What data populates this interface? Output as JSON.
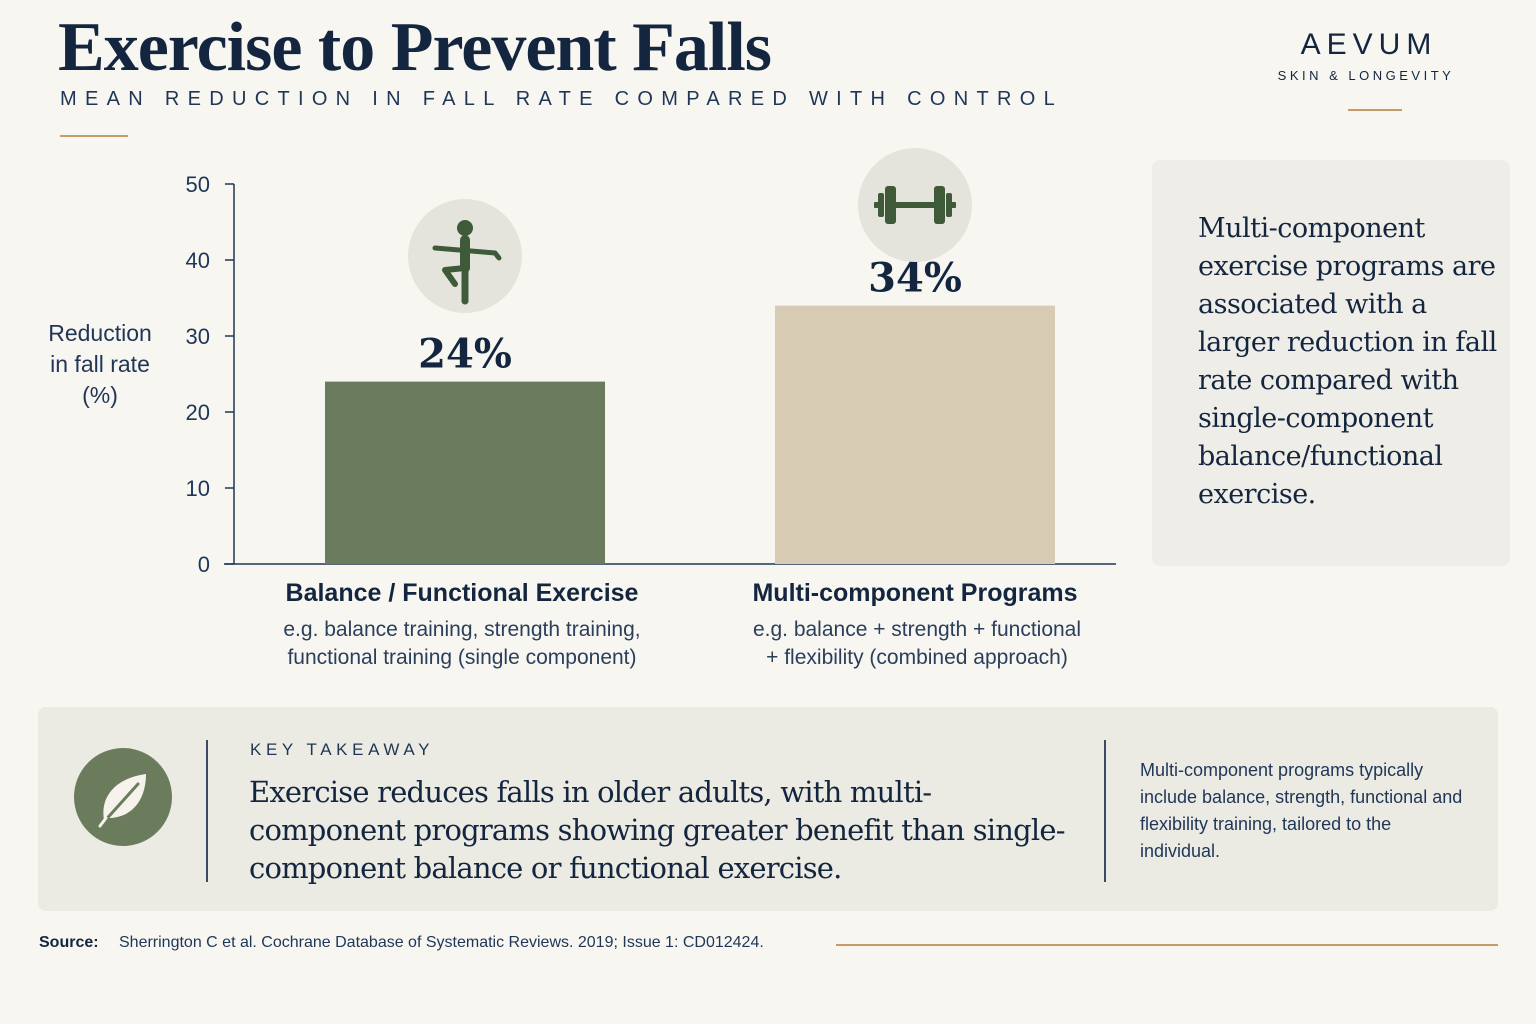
{
  "header": {
    "title": "Exercise to Prevent Falls",
    "subtitle": "MEAN REDUCTION IN FALL RATE COMPARED WITH CONTROL"
  },
  "brand": {
    "name": "AEVUM",
    "tagline": "SKIN & LONGEVITY"
  },
  "chart_data": {
    "type": "bar",
    "title": "Exercise to Prevent Falls",
    "subtitle": "MEAN REDUCTION IN FALL RATE COMPARED WITH CONTROL",
    "ylabel": "Reduction in fall rate (%)",
    "ylim": [
      0,
      50
    ],
    "yticks": [
      0,
      10,
      20,
      30,
      40,
      50
    ],
    "grid": false,
    "categories": [
      "Balance / Functional Exercise",
      "Multi-component Programs"
    ],
    "values": [
      24,
      34
    ],
    "value_labels": [
      "24%",
      "34%"
    ],
    "category_descriptions": [
      [
        "e.g. balance training, strength training,",
        "functional training (single component)"
      ],
      [
        "e.g. balance + strength + functional",
        "+ flexibility (combined approach)"
      ]
    ],
    "bar_colors": [
      "#6a7c5b",
      "#d8cbb4"
    ],
    "icons": [
      "standing-balance-icon",
      "dumbbell-icon"
    ]
  },
  "insight": {
    "text": "Multi-component exercise programs are associated with a larger reduction in fall rate compared with single-component balance/functional exercise."
  },
  "takeaway": {
    "label": "KEY TAKEAWAY",
    "text": "Exercise reduces falls in older adults, with multi-component programs showing greater benefit than single-component balance or functional exercise.",
    "note": "Multi-component programs typically include balance, strength, functional and flexibility training, tailored to the individual.",
    "icon": "leaf-icon"
  },
  "source": {
    "label": "Source:",
    "text": "Sherrington C et al. Cochrane Database of Systematic Reviews. 2019; Issue 1: CD012424."
  },
  "colors": {
    "navy": "#14263f",
    "accent": "#c79a6a",
    "bar_green": "#6a7c5b",
    "bar_beige": "#d8cbb4",
    "panel": "#ebeae3"
  }
}
